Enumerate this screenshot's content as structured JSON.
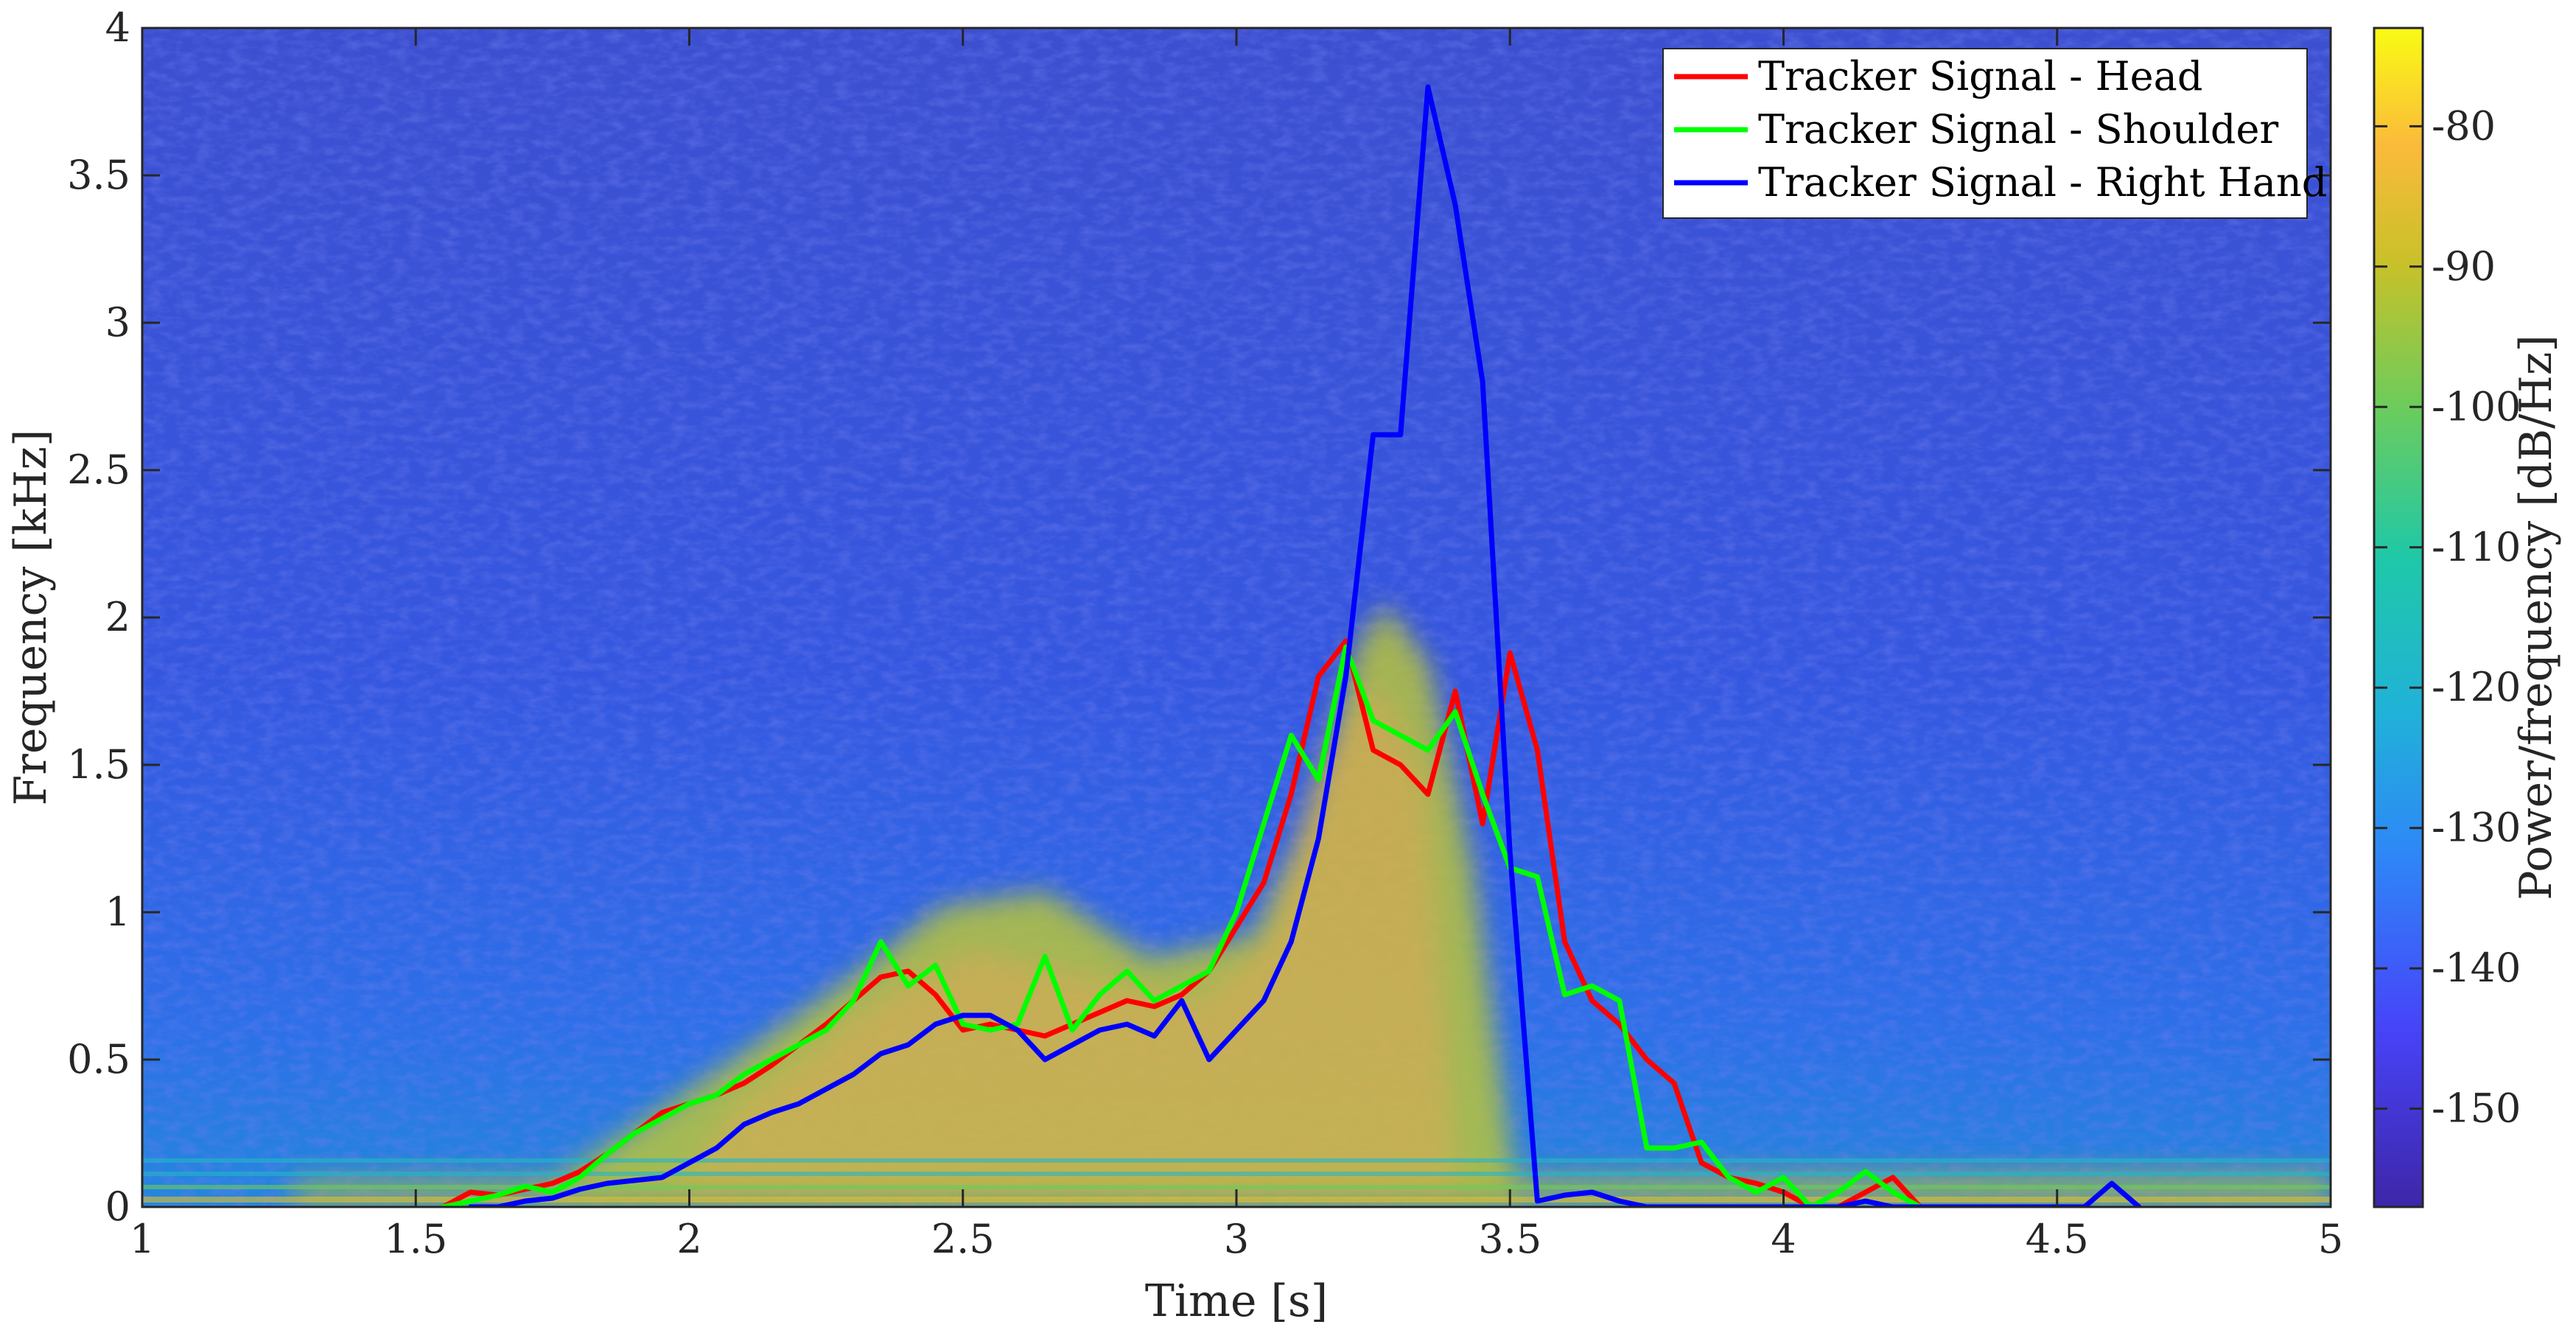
{
  "chart_data": {
    "type": "line",
    "background": "spectrogram",
    "xlabel": "Time [s]",
    "ylabel": "Frequency [kHz]",
    "xlim": [
      1,
      5
    ],
    "ylim": [
      0,
      4
    ],
    "xticks": [
      {
        "value": 1,
        "label": "1"
      },
      {
        "value": 1.5,
        "label": "1.5"
      },
      {
        "value": 2,
        "label": "2"
      },
      {
        "value": 2.5,
        "label": "2.5"
      },
      {
        "value": 3,
        "label": "3"
      },
      {
        "value": 3.5,
        "label": "3.5"
      },
      {
        "value": 4,
        "label": "4"
      },
      {
        "value": 4.5,
        "label": "4.5"
      },
      {
        "value": 5,
        "label": "5"
      }
    ],
    "yticks": [
      {
        "value": 0,
        "label": "0"
      },
      {
        "value": 0.5,
        "label": "0.5"
      },
      {
        "value": 1,
        "label": "1"
      },
      {
        "value": 1.5,
        "label": "1.5"
      },
      {
        "value": 2,
        "label": "2"
      },
      {
        "value": 2.5,
        "label": "2.5"
      },
      {
        "value": 3,
        "label": "3"
      },
      {
        "value": 3.5,
        "label": "3.5"
      },
      {
        "value": 4,
        "label": "4"
      }
    ],
    "grid": false,
    "legend_position": "top-right",
    "colorbar": {
      "label": "Power/frequency [dB/Hz]",
      "range": [
        -157,
        -73
      ],
      "ticks": [
        {
          "value": -80,
          "label": "-80"
        },
        {
          "value": -90,
          "label": "-90"
        },
        {
          "value": -100,
          "label": "-100"
        },
        {
          "value": -110,
          "label": "-110"
        },
        {
          "value": -120,
          "label": "-120"
        },
        {
          "value": -130,
          "label": "-130"
        },
        {
          "value": -140,
          "label": "-140"
        },
        {
          "value": -150,
          "label": "-150"
        }
      ],
      "colormap": [
        "#3e26a8",
        "#4743f8",
        "#2e87f7",
        "#20b2d8",
        "#1fc8a8",
        "#6dcc5b",
        "#c8c129",
        "#fbba3b",
        "#f9fb14"
      ]
    },
    "series": [
      {
        "name": "Tracker Signal - Head",
        "color": "#ff0000",
        "x": [
          1.55,
          1.6,
          1.65,
          1.7,
          1.75,
          1.8,
          1.85,
          1.9,
          1.95,
          2.0,
          2.05,
          2.1,
          2.15,
          2.2,
          2.25,
          2.3,
          2.35,
          2.4,
          2.45,
          2.5,
          2.55,
          2.6,
          2.65,
          2.7,
          2.75,
          2.8,
          2.85,
          2.9,
          2.95,
          3.0,
          3.05,
          3.1,
          3.15,
          3.2,
          3.25,
          3.3,
          3.35,
          3.4,
          3.45,
          3.5,
          3.55,
          3.6,
          3.65,
          3.7,
          3.75,
          3.8,
          3.85,
          3.9,
          3.95,
          4.0,
          4.05,
          4.1,
          4.15,
          4.2,
          4.25,
          4.3,
          4.35
        ],
        "y": [
          0.0,
          0.05,
          0.04,
          0.06,
          0.08,
          0.12,
          0.18,
          0.25,
          0.32,
          0.35,
          0.38,
          0.42,
          0.48,
          0.55,
          0.62,
          0.7,
          0.78,
          0.8,
          0.72,
          0.6,
          0.62,
          0.6,
          0.58,
          0.62,
          0.66,
          0.7,
          0.68,
          0.72,
          0.8,
          0.95,
          1.1,
          1.4,
          1.8,
          1.92,
          1.55,
          1.5,
          1.4,
          1.75,
          1.3,
          1.88,
          1.55,
          0.9,
          0.7,
          0.62,
          0.5,
          0.42,
          0.15,
          0.1,
          0.08,
          0.05,
          0.0,
          0.0,
          0.05,
          0.1,
          0.0,
          0.0,
          0.0
        ]
      },
      {
        "name": "Tracker Signal - Shoulder",
        "color": "#00ff00",
        "x": [
          1.55,
          1.6,
          1.65,
          1.7,
          1.75,
          1.8,
          1.85,
          1.9,
          1.95,
          2.0,
          2.05,
          2.1,
          2.15,
          2.2,
          2.25,
          2.3,
          2.35,
          2.4,
          2.45,
          2.5,
          2.55,
          2.6,
          2.65,
          2.7,
          2.75,
          2.8,
          2.85,
          2.9,
          2.95,
          3.0,
          3.05,
          3.1,
          3.15,
          3.2,
          3.25,
          3.3,
          3.35,
          3.4,
          3.45,
          3.5,
          3.55,
          3.6,
          3.65,
          3.7,
          3.75,
          3.8,
          3.85,
          3.9,
          3.95,
          4.0,
          4.05,
          4.1,
          4.15,
          4.2,
          4.25,
          4.3
        ],
        "y": [
          0.0,
          0.02,
          0.04,
          0.07,
          0.05,
          0.1,
          0.18,
          0.25,
          0.3,
          0.35,
          0.38,
          0.45,
          0.5,
          0.55,
          0.6,
          0.7,
          0.9,
          0.75,
          0.82,
          0.62,
          0.6,
          0.62,
          0.85,
          0.6,
          0.72,
          0.8,
          0.7,
          0.75,
          0.8,
          1.0,
          1.3,
          1.6,
          1.45,
          1.9,
          1.65,
          1.6,
          1.55,
          1.68,
          1.4,
          1.15,
          1.12,
          0.72,
          0.75,
          0.7,
          0.2,
          0.2,
          0.22,
          0.1,
          0.05,
          0.1,
          0.0,
          0.05,
          0.12,
          0.05,
          0.0,
          0.0
        ]
      },
      {
        "name": "Tracker Signal - Right Hand",
        "color": "#0000ff",
        "x": [
          1.6,
          1.65,
          1.7,
          1.75,
          1.8,
          1.85,
          1.9,
          1.95,
          2.0,
          2.05,
          2.1,
          2.15,
          2.2,
          2.25,
          2.3,
          2.35,
          2.4,
          2.45,
          2.5,
          2.55,
          2.6,
          2.65,
          2.7,
          2.75,
          2.8,
          2.85,
          2.9,
          2.95,
          3.0,
          3.05,
          3.1,
          3.15,
          3.2,
          3.25,
          3.3,
          3.35,
          3.4,
          3.45,
          3.5,
          3.55,
          3.6,
          3.65,
          3.7,
          3.75,
          3.8,
          3.85,
          3.9,
          3.95,
          4.0,
          4.05,
          4.1,
          4.15,
          4.2,
          4.25,
          4.3,
          4.35,
          4.4,
          4.45,
          4.5,
          4.55,
          4.6,
          4.65
        ],
        "y": [
          0.0,
          0.0,
          0.02,
          0.03,
          0.06,
          0.08,
          0.09,
          0.1,
          0.15,
          0.2,
          0.28,
          0.32,
          0.35,
          0.4,
          0.45,
          0.52,
          0.55,
          0.62,
          0.65,
          0.65,
          0.6,
          0.5,
          0.55,
          0.6,
          0.62,
          0.58,
          0.7,
          0.5,
          0.6,
          0.7,
          0.9,
          1.25,
          1.8,
          2.62,
          2.62,
          3.8,
          3.4,
          2.8,
          1.2,
          0.02,
          0.04,
          0.05,
          0.02,
          0.0,
          0.0,
          0.0,
          0.0,
          0.0,
          0.0,
          0.0,
          0.0,
          0.02,
          0.0,
          0.0,
          0.0,
          0.0,
          0.0,
          0.0,
          0.0,
          0.0,
          0.08,
          0.0
        ]
      }
    ]
  }
}
